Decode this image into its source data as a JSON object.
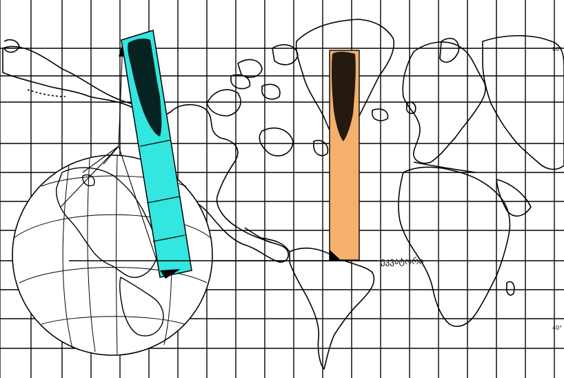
{
  "map": {
    "equator_label": "ეკვატორი",
    "lat_label_north": "80°",
    "lat_label_south": "40°"
  },
  "colors": {
    "background": "#ffffff",
    "grid_line": "#000000",
    "coast_line": "#000000",
    "strip_cyan": "#33e6df",
    "strip_orange": "#f5b06c"
  },
  "icons": {
    "projection_arrow": "arrow-up-icon"
  }
}
